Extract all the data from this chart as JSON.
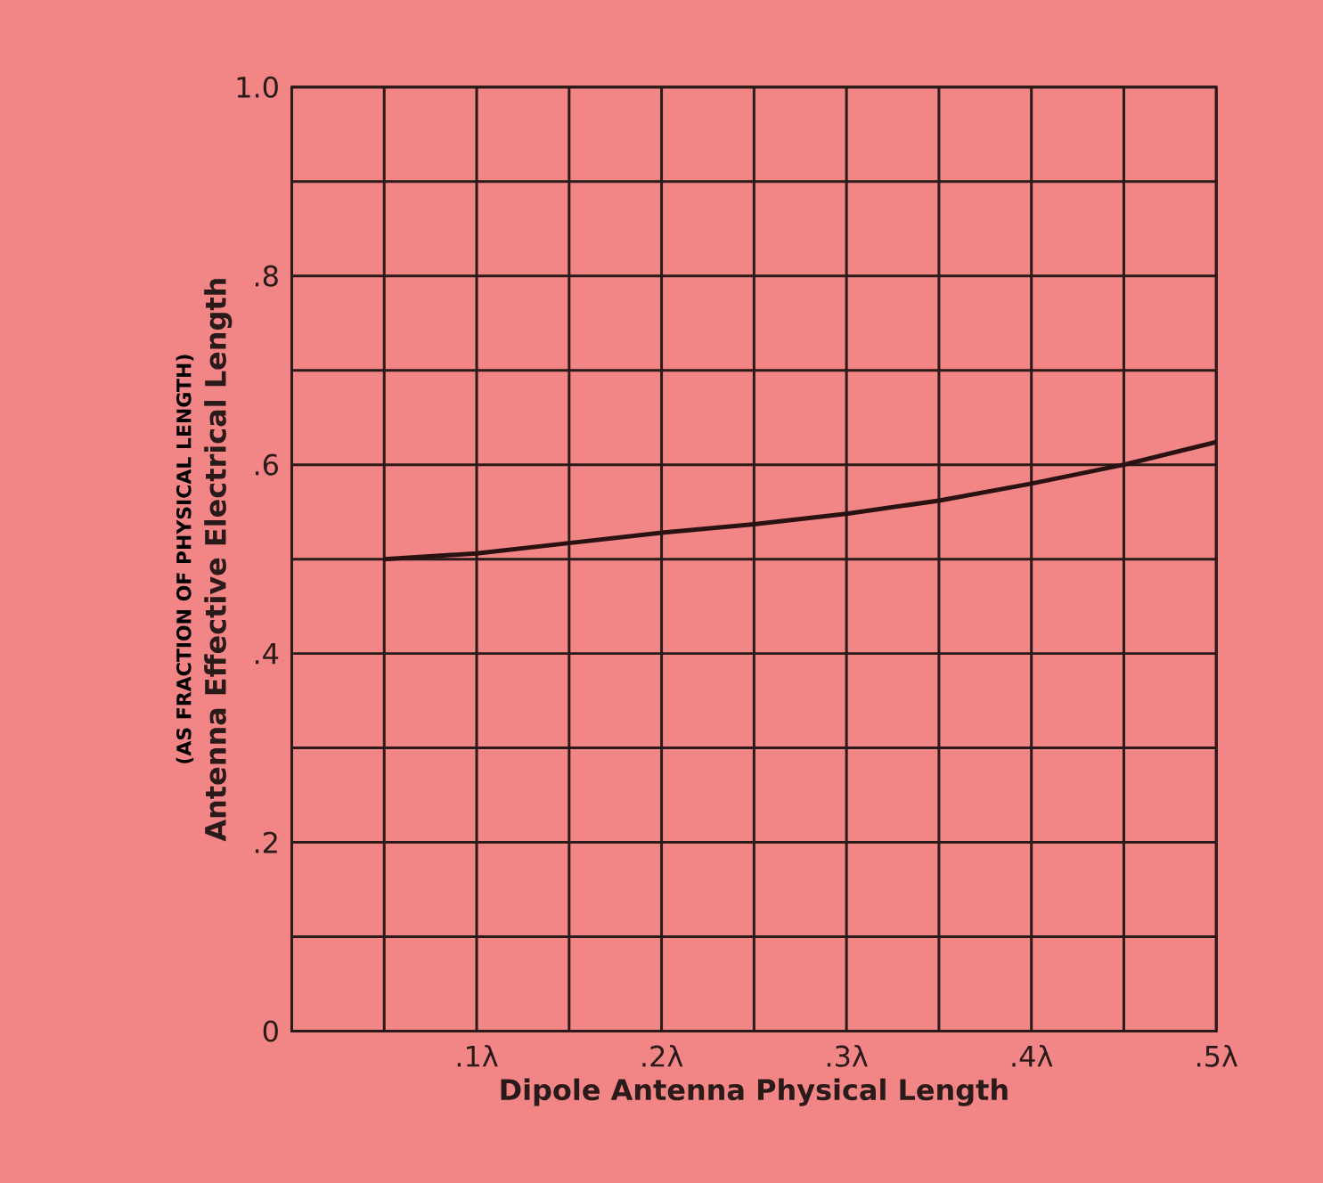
{
  "chart_data": {
    "type": "line",
    "xlabel": "Dipole Antenna Physical Length",
    "ylabel": "Antenna Effective Electrical Length",
    "annotations": [
      "(AS FRACTION OF PHYSICAL LENGTH)"
    ],
    "x": [
      0.05,
      0.1,
      0.15,
      0.2,
      0.25,
      0.3,
      0.35,
      0.4,
      0.45,
      0.5
    ],
    "series": [
      {
        "color": "#2a1212",
        "values": [
          0.5,
          0.506,
          0.517,
          0.528,
          0.537,
          0.548,
          0.562,
          0.58,
          0.6,
          0.624
        ]
      }
    ],
    "xlim": [
      0,
      0.5
    ],
    "ylim": [
      0,
      1.0
    ],
    "xticks": [
      {
        "value": 0,
        "label": null
      },
      {
        "value": 0.05,
        "label": null
      },
      {
        "value": 0.1,
        "label": ".1λ"
      },
      {
        "value": 0.15,
        "label": null
      },
      {
        "value": 0.2,
        "label": ".2λ"
      },
      {
        "value": 0.25,
        "label": null
      },
      {
        "value": 0.3,
        "label": ".3λ"
      },
      {
        "value": 0.35,
        "label": null
      },
      {
        "value": 0.4,
        "label": ".4λ"
      },
      {
        "value": 0.45,
        "label": null
      },
      {
        "value": 0.5,
        "label": ".5λ"
      }
    ],
    "yticks": [
      {
        "value": 0,
        "label": "0"
      },
      {
        "value": 0.1,
        "label": null
      },
      {
        "value": 0.2,
        "label": ".2"
      },
      {
        "value": 0.3,
        "label": null
      },
      {
        "value": 0.4,
        "label": ".4"
      },
      {
        "value": 0.5,
        "label": null
      },
      {
        "value": 0.6,
        "label": ".6"
      },
      {
        "value": 0.7,
        "label": null
      },
      {
        "value": 0.8,
        "label": ".8"
      },
      {
        "value": 0.9,
        "label": null
      },
      {
        "value": 1.0,
        "label": "1.0"
      }
    ],
    "grid": true,
    "marker": "none",
    "line_style": "solid"
  }
}
